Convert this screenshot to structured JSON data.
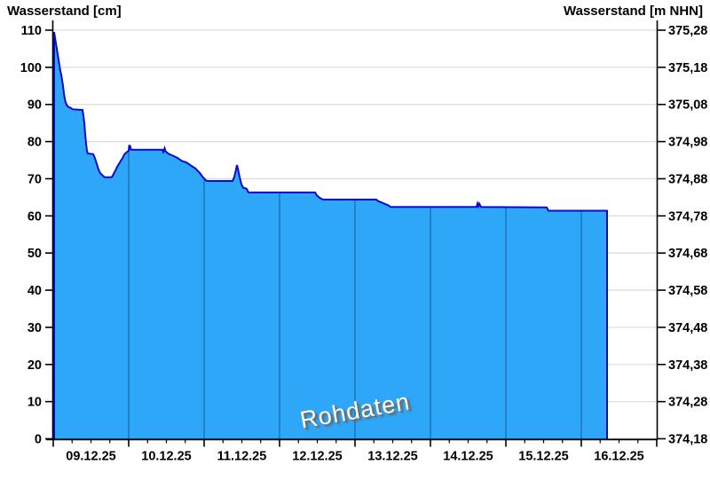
{
  "titles": {
    "left": "Wasserstand [cm]",
    "right": "Wasserstand [m NHN]"
  },
  "watermark": {
    "text": "Rohdaten"
  },
  "colors": {
    "area_fill": "#2EA7F8",
    "area_border": "#0A0ACD",
    "day_line_over_area": "#1B7AC0",
    "horizontal_grid": "#DEDEDE",
    "axis": "#000000",
    "watermark_text": "#FFFFFF",
    "watermark_shadow": "#6E6E6E"
  },
  "chart_data": {
    "type": "area",
    "title": "",
    "series_name": "Rohdaten",
    "x_axis": {
      "labels": [
        "09.12.25",
        "10.12.25",
        "11.12.25",
        "12.12.25",
        "13.12.25",
        "14.12.25",
        "15.12.25",
        "16.12.25"
      ],
      "range_days": 8,
      "minor_ticks_per_day": 4,
      "grid": "day-boundaries-inside-area-only"
    },
    "y_left": {
      "label": "Wasserstand [cm]",
      "ticks": [
        0,
        10,
        20,
        30,
        40,
        50,
        60,
        70,
        80,
        90,
        100,
        110
      ],
      "range": [
        0,
        110
      ],
      "grid": "on"
    },
    "y_right": {
      "label": "Wasserstand [m NHN]",
      "tick_labels": [
        "374,18",
        "374,28",
        "374,38",
        "374,48",
        "374,58",
        "374,68",
        "374,78",
        "374,88",
        "374,98",
        "375,08",
        "375,18",
        "375,28"
      ],
      "range": [
        374.18,
        375.28
      ]
    },
    "points_day_cm": [
      [
        0.012,
        109.5
      ],
      [
        0.024,
        108
      ],
      [
        0.035,
        106.5
      ],
      [
        0.047,
        105
      ],
      [
        0.059,
        103.5
      ],
      [
        0.071,
        102
      ],
      [
        0.082,
        100.5
      ],
      [
        0.094,
        99
      ],
      [
        0.106,
        98
      ],
      [
        0.118,
        96.5
      ],
      [
        0.129,
        95
      ],
      [
        0.141,
        93
      ],
      [
        0.153,
        91.5
      ],
      [
        0.165,
        90.5
      ],
      [
        0.176,
        90
      ],
      [
        0.188,
        89.5
      ],
      [
        0.235,
        89
      ],
      [
        0.259,
        88.7
      ],
      [
        0.388,
        88.5
      ],
      [
        0.4,
        87
      ],
      [
        0.412,
        85
      ],
      [
        0.424,
        82
      ],
      [
        0.435,
        79.5
      ],
      [
        0.447,
        77.5
      ],
      [
        0.459,
        76.8
      ],
      [
        0.53,
        76.6
      ],
      [
        0.553,
        75.5
      ],
      [
        0.576,
        74
      ],
      [
        0.6,
        72.5
      ],
      [
        0.624,
        71.5
      ],
      [
        0.659,
        70.8
      ],
      [
        0.682,
        70.4
      ],
      [
        0.776,
        70.4
      ],
      [
        0.8,
        71.3
      ],
      [
        0.824,
        72.2
      ],
      [
        0.847,
        73.2
      ],
      [
        0.871,
        74
      ],
      [
        0.894,
        74.8
      ],
      [
        0.918,
        75.5
      ],
      [
        0.941,
        76.5
      ],
      [
        0.976,
        77.2
      ],
      [
        1.0,
        77.5
      ],
      [
        1.006,
        78.9
      ],
      [
        1.018,
        78.9
      ],
      [
        1.03,
        77.8
      ],
      [
        1.447,
        77.8
      ],
      [
        1.459,
        77.2
      ],
      [
        1.476,
        78.2
      ],
      [
        1.488,
        77.4
      ],
      [
        1.529,
        76.7
      ],
      [
        1.588,
        76.2
      ],
      [
        1.647,
        75.6
      ],
      [
        1.706,
        74.8
      ],
      [
        1.765,
        74.4
      ],
      [
        1.824,
        73.6
      ],
      [
        1.882,
        72.8
      ],
      [
        1.941,
        71.6
      ],
      [
        1.976,
        70.6
      ],
      [
        2.012,
        69.8
      ],
      [
        2.035,
        69.4
      ],
      [
        2.376,
        69.4
      ],
      [
        2.4,
        70.5
      ],
      [
        2.424,
        72.5
      ],
      [
        2.435,
        73.7
      ],
      [
        2.447,
        72.8
      ],
      [
        2.471,
        70.5
      ],
      [
        2.494,
        68.5
      ],
      [
        2.518,
        67.6
      ],
      [
        2.565,
        67.3
      ],
      [
        2.588,
        66.3
      ],
      [
        3.471,
        66.3
      ],
      [
        3.494,
        65.5
      ],
      [
        3.529,
        64.9
      ],
      [
        3.565,
        64.5
      ],
      [
        3.588,
        64.4
      ],
      [
        4.282,
        64.4
      ],
      [
        4.306,
        64.0
      ],
      [
        4.353,
        63.6
      ],
      [
        4.4,
        63.2
      ],
      [
        4.447,
        62.8
      ],
      [
        4.471,
        62.4
      ],
      [
        5.612,
        62.4
      ],
      [
        5.624,
        63.3
      ],
      [
        5.635,
        62.6
      ],
      [
        5.647,
        63.3
      ],
      [
        5.671,
        62.4
      ],
      [
        6.541,
        62.3
      ],
      [
        6.565,
        61.4
      ],
      [
        7.341,
        61.4
      ]
    ]
  }
}
